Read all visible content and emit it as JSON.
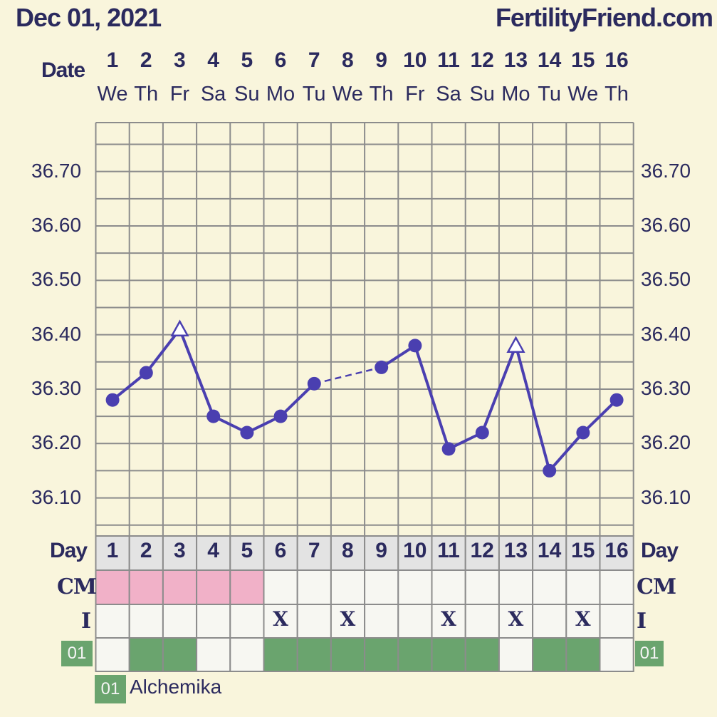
{
  "header": {
    "date": "Dec 01, 2021",
    "site": "FertilityFriend.com"
  },
  "labels": {
    "date": "Date",
    "day": "Day",
    "cm": "CM",
    "i": "I"
  },
  "chart_data": {
    "type": "line",
    "days": [
      1,
      2,
      3,
      4,
      5,
      6,
      7,
      8,
      9,
      10,
      11,
      12,
      13,
      14,
      15,
      16
    ],
    "dow": [
      "We",
      "Th",
      "Fr",
      "Sa",
      "Su",
      "Mo",
      "Tu",
      "We",
      "Th",
      "Fr",
      "Sa",
      "Su",
      "Mo",
      "Tu",
      "We",
      "Th"
    ],
    "y_ticks": [
      "36.70",
      "36.60",
      "36.50",
      "36.40",
      "36.30",
      "36.20",
      "36.10"
    ],
    "ylim": [
      36.03,
      36.79
    ],
    "temps": [
      36.28,
      36.33,
      36.41,
      36.25,
      36.22,
      36.25,
      36.31,
      null,
      36.34,
      36.38,
      36.19,
      36.22,
      36.38,
      36.15,
      36.22,
      36.28
    ],
    "markers": [
      "circle",
      "circle",
      "triangle-open",
      "circle",
      "circle",
      "circle",
      "circle",
      null,
      "circle",
      "circle",
      "circle",
      "circle",
      "triangle-open",
      "circle",
      "circle",
      "circle"
    ],
    "dashed_gap_between_days": [
      7,
      9
    ],
    "cm": [
      "pink",
      "pink",
      "pink",
      "pink",
      "pink",
      "",
      "",
      "",
      "",
      "",
      "",
      "",
      "",
      "",
      "",
      ""
    ],
    "i": [
      "",
      "",
      "",
      "",
      "",
      "X",
      "",
      "X",
      "",
      "",
      "X",
      "",
      "X",
      "",
      "X",
      ""
    ],
    "row01": [
      "",
      "green",
      "green",
      "",
      "",
      "green",
      "green",
      "green",
      "green",
      "green",
      "green",
      "green",
      "",
      "green",
      "green",
      ""
    ],
    "row_label": "01",
    "legend": {
      "code": "01",
      "name": "Alchemika"
    },
    "colors": {
      "line": "#4a3fb0",
      "grid": "#8c8c8c",
      "pink": "#f1b1c8",
      "green": "#6aa46e",
      "day_header": "#e3e3e3",
      "empty_cell": "#f7f7f2",
      "text": "#2b2a5e"
    }
  }
}
